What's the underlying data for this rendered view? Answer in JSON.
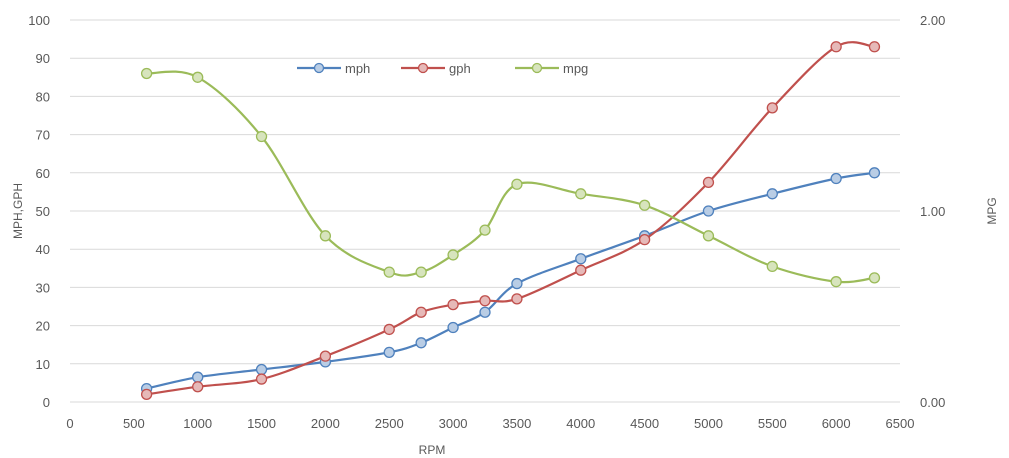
{
  "chart_data": {
    "type": "line",
    "title": "",
    "xlabel": "RPM",
    "ylabel": "MPH,GPH",
    "y2label": "MPG",
    "xlim": [
      0,
      6500
    ],
    "ylim": [
      0,
      100
    ],
    "y2lim": [
      0,
      2
    ],
    "x_ticks": [
      "0",
      "500",
      "1000",
      "1500",
      "2000",
      "2500",
      "3000",
      "3500",
      "4000",
      "4500",
      "5000",
      "5500",
      "6000",
      "6500"
    ],
    "y_ticks": [
      "0",
      "10",
      "20",
      "30",
      "40",
      "50",
      "60",
      "70",
      "80",
      "90",
      "100"
    ],
    "y2_ticks": [
      "0.00",
      "1.00",
      "2.00"
    ],
    "grid": true,
    "legend_position": "top-center",
    "series": [
      {
        "name": "mph",
        "axis": "left",
        "color": "#4f81bd",
        "marker_fill": "#b9cde5",
        "x": [
          600,
          1000,
          1500,
          2000,
          2500,
          2750,
          3000,
          3250,
          3500,
          4000,
          4500,
          5000,
          5500,
          6000,
          6300
        ],
        "y": [
          3.5,
          6.5,
          8.5,
          10.5,
          13,
          15.5,
          19.5,
          23.5,
          31,
          37.5,
          43.5,
          50,
          54.5,
          58.5,
          60
        ]
      },
      {
        "name": "gph",
        "axis": "left",
        "color": "#c0504d",
        "marker_fill": "#e6b9b8",
        "x": [
          600,
          1000,
          1500,
          2000,
          2500,
          2750,
          3000,
          3250,
          3500,
          4000,
          4500,
          5000,
          5500,
          6000,
          6300
        ],
        "y": [
          2,
          4,
          6,
          12,
          19,
          23.5,
          25.5,
          26.5,
          27,
          34.5,
          42.5,
          57.5,
          77,
          93,
          93
        ]
      },
      {
        "name": "mpg",
        "axis": "right",
        "color": "#9bbb59",
        "marker_fill": "#d7e4bd",
        "x": [
          600,
          1000,
          1500,
          2000,
          2500,
          2750,
          3000,
          3250,
          3500,
          4000,
          4500,
          5000,
          5500,
          6000,
          6300
        ],
        "y": [
          1.72,
          1.7,
          1.39,
          0.87,
          0.68,
          0.68,
          0.77,
          0.9,
          1.14,
          1.09,
          1.03,
          0.87,
          0.71,
          0.63,
          0.65
        ]
      }
    ]
  }
}
